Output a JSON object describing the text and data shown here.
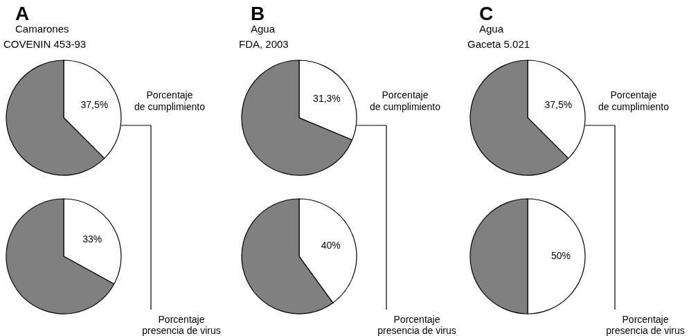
{
  "chart_data": [
    {
      "type": "pie",
      "title": "A",
      "subtitle": "Camarones",
      "categories": [
        null,
        null
      ],
      "values": [
        37.5,
        62.5
      ],
      "colors": [
        "#ffffff",
        "#808080"
      ],
      "value_labels": [
        "37,5%",
        null
      ],
      "annotations": [
        "COVENIN 453-93",
        "Porcentaje de cumplimiento"
      ]
    },
    {
      "type": "pie",
      "title": "B",
      "subtitle": "Agua",
      "categories": [
        null,
        null
      ],
      "values": [
        31.3,
        68.7
      ],
      "colors": [
        "#ffffff",
        "#808080"
      ],
      "value_labels": [
        "31,3%",
        null
      ],
      "annotations": [
        "FDA, 2003",
        "Porcentaje de cumplimiento"
      ]
    },
    {
      "type": "pie",
      "title": "C",
      "subtitle": "Agua",
      "categories": [
        null,
        null
      ],
      "values": [
        37.5,
        62.5
      ],
      "colors": [
        "#ffffff",
        "#808080"
      ],
      "value_labels": [
        "37,5%",
        null
      ],
      "annotations": [
        "Gaceta 5.021",
        "Porcentaje de cumplimiento"
      ]
    },
    {
      "type": "pie",
      "categories": [
        null,
        null
      ],
      "values": [
        33,
        67
      ],
      "colors": [
        "#ffffff",
        "#808080"
      ],
      "value_labels": [
        "33%",
        null
      ],
      "annotations": [
        "Porcentaje presencia de virus"
      ]
    },
    {
      "type": "pie",
      "categories": [
        null,
        null
      ],
      "values": [
        40,
        60
      ],
      "colors": [
        "#ffffff",
        "#808080"
      ],
      "value_labels": [
        "40%",
        null
      ],
      "annotations": [
        "Porcentaje presencia de virus"
      ]
    },
    {
      "type": "pie",
      "categories": [
        null,
        null
      ],
      "values": [
        50,
        50
      ],
      "colors": [
        "#ffffff",
        "#808080"
      ],
      "value_labels": [
        "50%",
        null
      ],
      "annotations": [
        "Porcentaje presencia de virus"
      ]
    }
  ]
}
